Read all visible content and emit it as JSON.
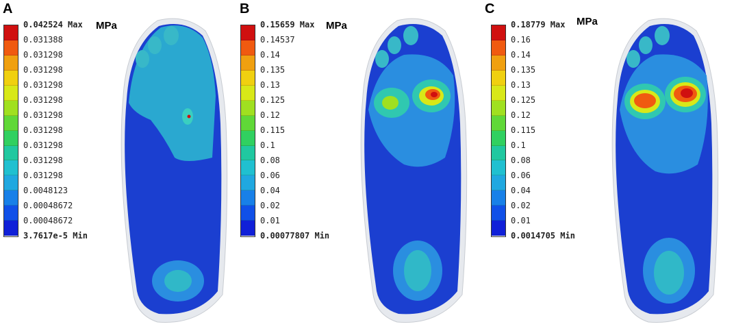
{
  "colors": [
    "#d01010",
    "#f05a10",
    "#f0a010",
    "#f0d010",
    "#d8e818",
    "#a0e020",
    "#60d838",
    "#30d060",
    "#20c8a0",
    "#20c0d0",
    "#20a8e0",
    "#1880e8",
    "#1050e8",
    "#1020d8"
  ],
  "panels": [
    {
      "letter": "A",
      "unit": "MPa",
      "labels": [
        "0.042524 Max",
        "0.031388",
        "0.031298",
        "0.031298",
        "0.031298",
        "0.031298",
        "0.031298",
        "0.031298",
        "0.031298",
        "0.031298",
        "0.031298",
        "0.0048123",
        "0.00048672",
        "0.00048672",
        "3.7617e-5 Min"
      ]
    },
    {
      "letter": "B",
      "unit": "MPa",
      "labels": [
        "0.15659 Max",
        "0.14537",
        "0.14",
        "0.135",
        "0.13",
        "0.125",
        "0.12",
        "0.115",
        "0.1",
        "0.08",
        "0.06",
        "0.04",
        "0.02",
        "0.01",
        "0.00077807 Min"
      ]
    },
    {
      "letter": "C",
      "unit": "MPa",
      "labels": [
        "0.18779 Max",
        "0.16",
        "0.14",
        "0.135",
        "0.13",
        "0.125",
        "0.12",
        "0.115",
        "0.1",
        "0.08",
        "0.06",
        "0.04",
        "0.02",
        "0.01",
        "0.0014705 Min"
      ]
    }
  ]
}
